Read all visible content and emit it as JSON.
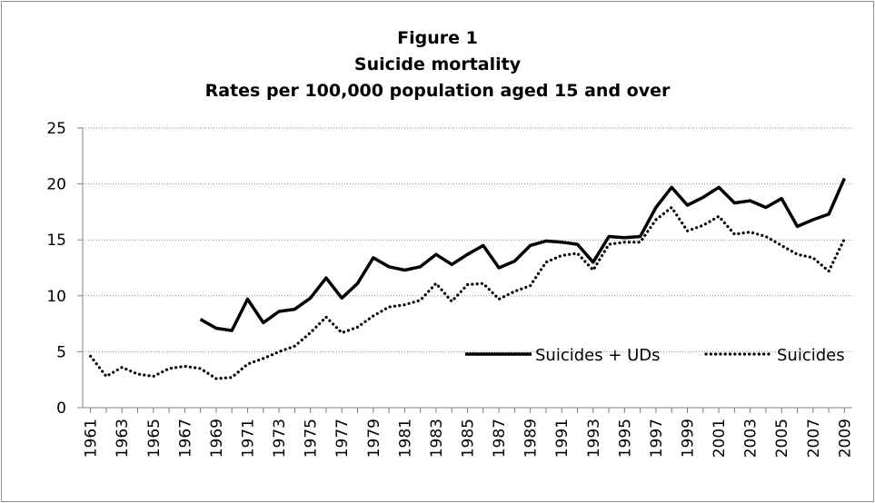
{
  "chart_data": {
    "type": "line",
    "title": [
      "Figure 1",
      "Suicide mortality",
      "Rates per 100,000 population aged 15 and over"
    ],
    "xlabel": "",
    "ylabel": "",
    "ylim": [
      0,
      25
    ],
    "yticks": [
      0,
      5,
      10,
      15,
      20,
      25
    ],
    "x": [
      1961,
      1962,
      1963,
      1964,
      1965,
      1966,
      1967,
      1968,
      1969,
      1970,
      1971,
      1972,
      1973,
      1974,
      1975,
      1976,
      1977,
      1978,
      1979,
      1980,
      1981,
      1982,
      1983,
      1984,
      1985,
      1986,
      1987,
      1988,
      1989,
      1990,
      1991,
      1992,
      1993,
      1994,
      1995,
      1996,
      1997,
      1998,
      1999,
      2000,
      2001,
      2002,
      2003,
      2004,
      2005,
      2006,
      2007,
      2008,
      2009
    ],
    "xtick_labels": [
      "1961",
      "1963",
      "1965",
      "1967",
      "1969",
      "1971",
      "1973",
      "1975",
      "1977",
      "1979",
      "1981",
      "1983",
      "1985",
      "1987",
      "1989",
      "1991",
      "1993",
      "1995",
      "1997",
      "1999",
      "2001",
      "2003",
      "2005",
      "2007",
      "2009"
    ],
    "grid": "horizontal",
    "legend_position": "right",
    "series": [
      {
        "name": "Suicides + UDs",
        "style": "solid",
        "color": "#000000",
        "values": [
          null,
          null,
          null,
          null,
          null,
          null,
          null,
          7.9,
          7.1,
          6.9,
          9.7,
          7.6,
          8.6,
          8.8,
          9.8,
          11.6,
          9.8,
          11.1,
          13.4,
          12.6,
          12.3,
          12.6,
          13.7,
          12.8,
          13.7,
          14.5,
          12.5,
          13.1,
          14.5,
          14.9,
          14.8,
          14.6,
          13.0,
          15.3,
          15.2,
          15.3,
          17.9,
          19.7,
          18.1,
          18.8,
          19.7,
          18.3,
          18.5,
          17.9,
          18.7,
          16.2,
          16.8,
          17.3,
          20.5
        ]
      },
      {
        "name": "Suicides",
        "style": "dotted",
        "color": "#000000",
        "values": [
          4.6,
          2.8,
          3.6,
          3.0,
          2.8,
          3.5,
          3.7,
          3.5,
          2.6,
          2.7,
          3.9,
          4.4,
          5.0,
          5.5,
          6.7,
          8.1,
          6.7,
          7.2,
          8.2,
          9.0,
          9.2,
          9.6,
          11.1,
          9.5,
          11.0,
          11.1,
          9.7,
          10.4,
          10.9,
          13.0,
          13.6,
          13.8,
          12.3,
          14.6,
          14.8,
          14.8,
          16.8,
          17.9,
          15.8,
          16.3,
          17.1,
          15.5,
          15.7,
          15.3,
          14.5,
          13.7,
          13.4,
          12.2,
          15.1
        ]
      }
    ]
  }
}
